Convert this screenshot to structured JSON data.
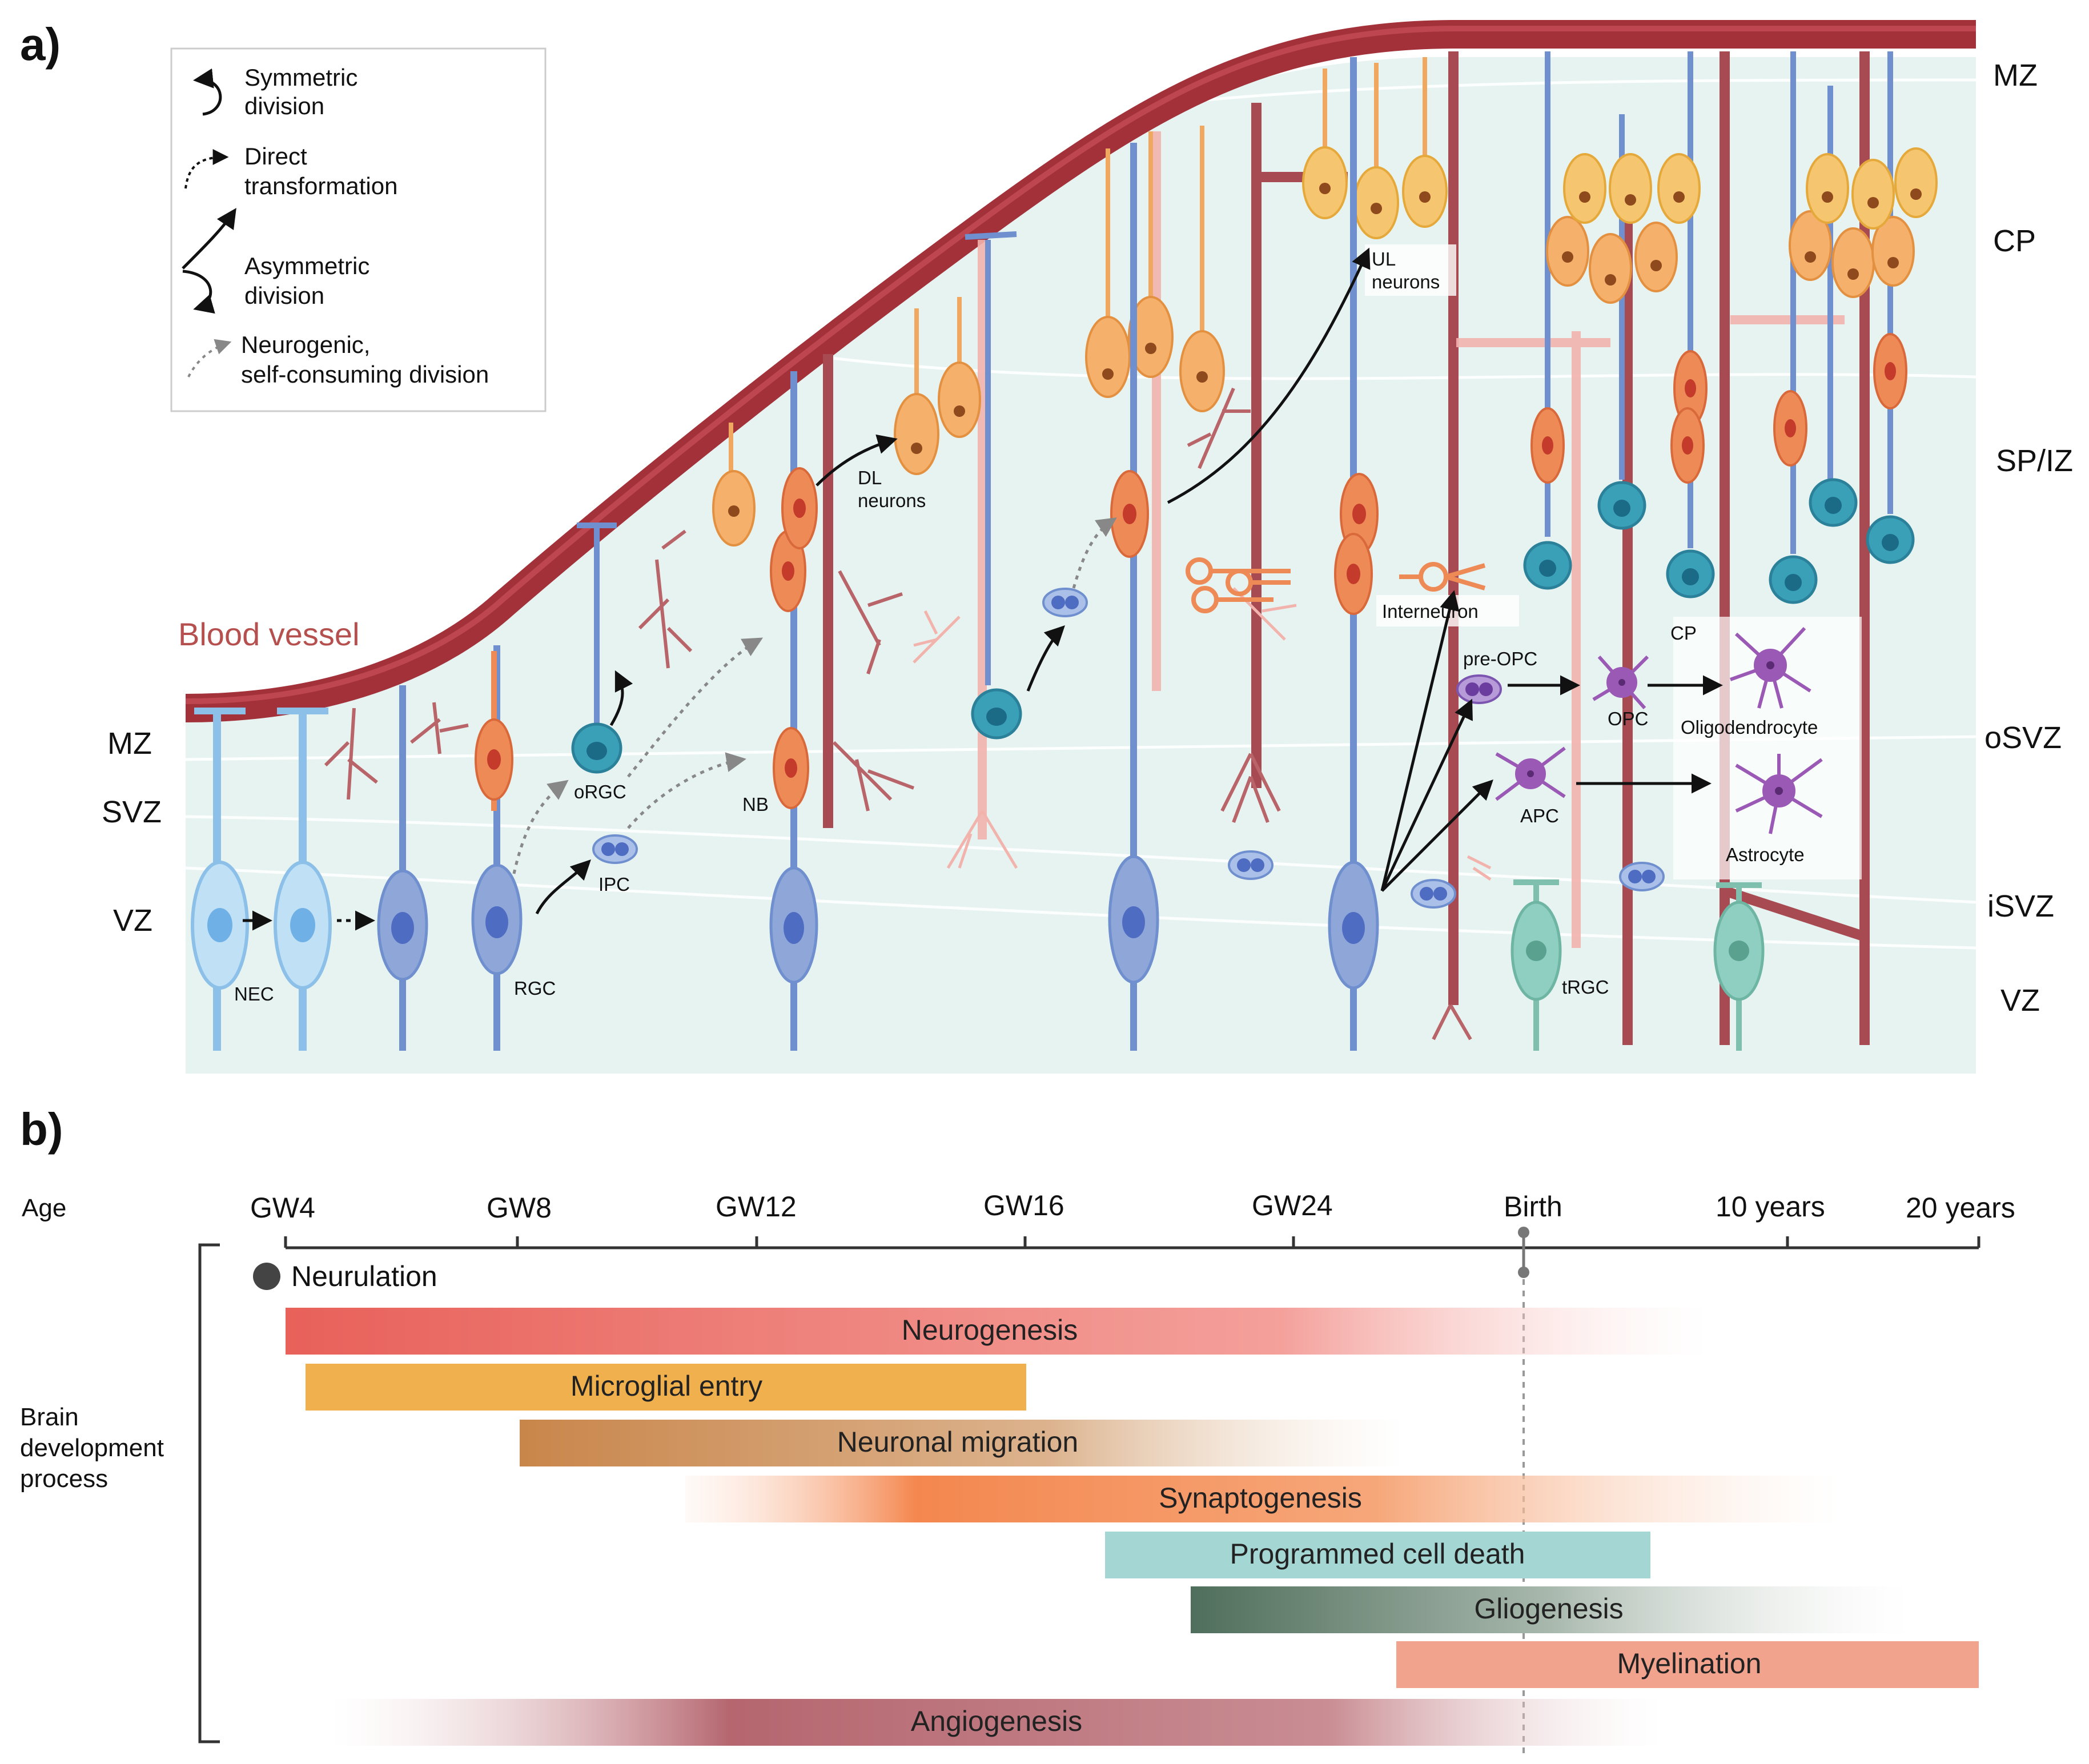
{
  "panel_a": {
    "letter": "a)",
    "legend": [
      {
        "key": "symmetric",
        "lines": [
          "Symmetric",
          "division"
        ]
      },
      {
        "key": "direct",
        "lines": [
          "Direct",
          "transformation"
        ]
      },
      {
        "key": "asymmetric",
        "lines": [
          "Asymmetric",
          "division"
        ]
      },
      {
        "key": "neurogenic",
        "lines": [
          "Neurogenic,",
          "self-consuming division"
        ]
      }
    ],
    "blood_vessel_label": "Blood vessel",
    "left_zones": [
      "MZ",
      "SVZ",
      "VZ"
    ],
    "right_zones": [
      "MZ",
      "CP",
      "SP/IZ",
      "oSVZ",
      "iSVZ",
      "VZ"
    ],
    "cell_labels": {
      "nec": "NEC",
      "rgc": "RGC",
      "orgc": "oRGC",
      "ipc": "IPC",
      "nb": "NB",
      "dl": [
        "DL",
        "neurons"
      ],
      "ul": [
        "UL",
        "neurons"
      ],
      "interneuron": "Interneuron",
      "pre_opc": "pre-OPC",
      "opc": "OPC",
      "apc": "APC",
      "cp": "CP",
      "oligodendrocyte": "Oligodendrocyte",
      "astrocyte": "Astrocyte",
      "trgc": "tRGC"
    },
    "colors": {
      "vessel": "#a3313a",
      "tissue": "#e6f3f1",
      "rgc": "#8ea6d8",
      "neuron_deep": "#ee8a55",
      "neuron_upper": "#f6c56f",
      "trgc": "#8fcfc1",
      "glia": "#9b59b6"
    }
  },
  "panel_b": {
    "letter": "b)",
    "age_label": "Age",
    "process_label": [
      "Brain",
      "development",
      "process"
    ],
    "ticks": [
      "GW4",
      "GW8",
      "GW12",
      "GW16",
      "GW24",
      "Birth",
      "10 years",
      "20 years"
    ],
    "neurulation": {
      "label": "Neurulation",
      "at": "GW4"
    },
    "bars": [
      {
        "label": "Neurogenesis",
        "start": "GW4",
        "end": "past Birth (fading)",
        "color": "#e8615a"
      },
      {
        "label": "Microglial entry",
        "start": "GW4",
        "end": "GW16",
        "color": "#f0b04e"
      },
      {
        "label": "Neuronal migration",
        "start": "GW8",
        "end": "past GW24 (fading)",
        "color": "#c9864b"
      },
      {
        "label": "Synaptogenesis",
        "start": "before GW12 (fading in)",
        "end": "past Birth (fading)",
        "color": "#f4874f"
      },
      {
        "label": "Programmed cell death",
        "start": "before GW24",
        "end": "after Birth",
        "color": "#a4d6d3"
      },
      {
        "label": "Gliogenesis",
        "start": "before GW24",
        "end": "before 20 years (fading)",
        "color": "#4f6e5b"
      },
      {
        "label": "Myelination",
        "start": "after GW24",
        "end": "20 years",
        "color": "#f2a38e"
      },
      {
        "label": "Angiogenesis",
        "start": "after GW4 (fading in)",
        "end": "after Birth (fading)",
        "color": "#b5666f"
      }
    ]
  }
}
